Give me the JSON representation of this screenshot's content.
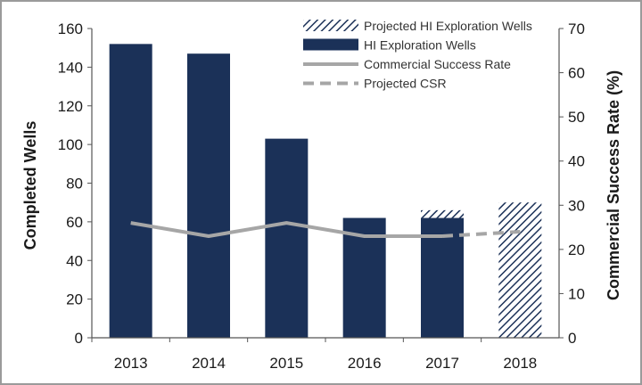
{
  "chart_data": {
    "type": "bar",
    "categories": [
      "2013",
      "2014",
      "2015",
      "2016",
      "2017",
      "2018"
    ],
    "series": [
      {
        "name": "HI Exploration Wells",
        "kind": "bar",
        "axis": "left",
        "values": [
          152,
          147,
          103,
          62,
          62,
          0
        ]
      },
      {
        "name": "Projected HI Exploration Wells",
        "kind": "bar-hatched",
        "axis": "left",
        "values": [
          0,
          0,
          0,
          0,
          4,
          70
        ]
      },
      {
        "name": "Commercial Success Rate",
        "kind": "line",
        "axis": "right",
        "values": [
          26,
          23,
          26,
          23,
          23,
          null
        ]
      },
      {
        "name": "Projected CSR",
        "kind": "line-dashed",
        "axis": "right",
        "values": [
          null,
          null,
          null,
          null,
          23,
          24
        ]
      }
    ],
    "ylabel": "Completed Wells",
    "ylim": [
      0,
      160
    ],
    "yticks": [
      "0",
      "20",
      "40",
      "60",
      "80",
      "100",
      "120",
      "140",
      "160"
    ],
    "y2label": "Commercial Success Rate (%)",
    "y2lim": [
      0,
      70
    ],
    "y2ticks": [
      "0",
      "10",
      "20",
      "30",
      "40",
      "50",
      "60",
      "70"
    ],
    "legend": {
      "placement": "top-right",
      "items": [
        "Projected HI Exploration Wells",
        "HI Exploration Wells",
        "Commercial Success Rate",
        "Projected CSR"
      ]
    },
    "grid": false,
    "colors": {
      "bar": "#1b3158",
      "hatch": "#1b3158",
      "line": "#a6a6a6",
      "axis": "#555555"
    }
  }
}
